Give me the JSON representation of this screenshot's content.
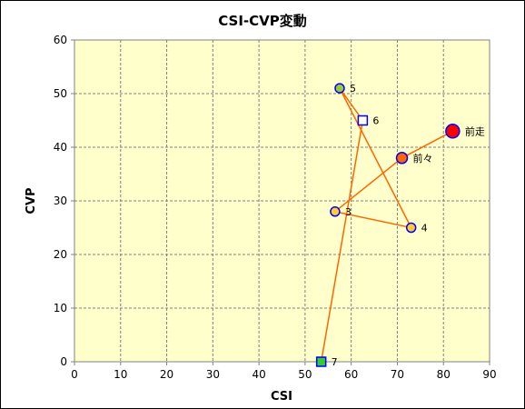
{
  "chart_data": {
    "type": "scatter",
    "title": "CSI-CVP変動",
    "xlabel": "CSI",
    "ylabel": "CVP",
    "xlim": [
      0,
      90
    ],
    "ylim": [
      0,
      60
    ],
    "xticks": [
      0,
      10,
      20,
      30,
      40,
      50,
      60,
      70,
      80,
      90
    ],
    "yticks": [
      0,
      10,
      20,
      30,
      40,
      50,
      60
    ],
    "grid": true,
    "plot_background": "#ffffcc",
    "line_color": "#ff6600",
    "points": [
      {
        "label": "前走",
        "x": 82,
        "y": 43,
        "shape": "circle",
        "fill": "#ff0000",
        "stroke": "#0000ff",
        "size": "large"
      },
      {
        "label": "前々",
        "x": 71,
        "y": 38,
        "shape": "circle",
        "fill": "#ff6600",
        "stroke": "#0000ff",
        "size": "medium"
      },
      {
        "label": "3",
        "x": 56.5,
        "y": 28,
        "shape": "circle",
        "fill": "#ffcc33",
        "stroke": "#0000ff",
        "size": "small"
      },
      {
        "label": "4",
        "x": 73,
        "y": 25,
        "shape": "circle",
        "fill": "#ffcc33",
        "stroke": "#0000ff",
        "size": "small"
      },
      {
        "label": "5",
        "x": 57.5,
        "y": 51,
        "shape": "circle",
        "fill": "#99cc33",
        "stroke": "#0000ff",
        "size": "small"
      },
      {
        "label": "6",
        "x": 62.5,
        "y": 45,
        "shape": "square",
        "fill": "#ffffff",
        "stroke": "#0000ff",
        "size": "small"
      },
      {
        "label": "7",
        "x": 53.5,
        "y": 0,
        "shape": "square",
        "fill": "#33cc33",
        "stroke": "#0000ff",
        "size": "small"
      }
    ]
  }
}
